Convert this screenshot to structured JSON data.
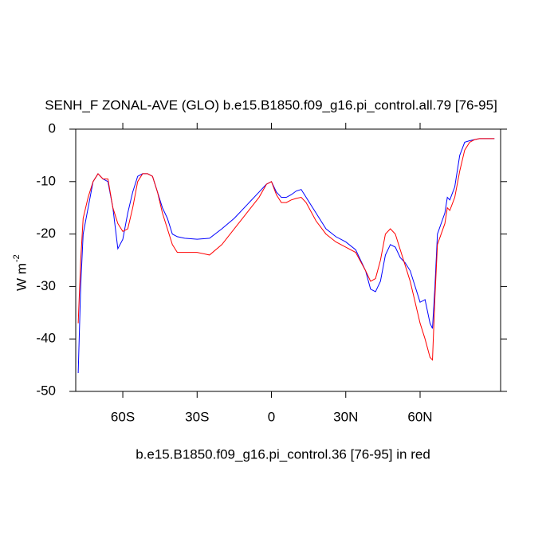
{
  "chart_data": {
    "type": "line",
    "title": "SENH_F ZONAL-AVE (GLO) b.e15.B1850.f09_g16.pi_control.all.79 [76-95]",
    "x_label": "b.e15.B1850.f09_g16.pi_control.36 [76-95] in red",
    "y_label": "W m",
    "y_label_superscript": "-2",
    "xlim": [
      -79,
      92.5
    ],
    "ylim": [
      -50,
      0
    ],
    "xticks": [
      {
        "value": -60,
        "label": "60S"
      },
      {
        "value": -30,
        "label": "30S"
      },
      0,
      {
        "value": 30,
        "label": "30N"
      },
      {
        "value": 60,
        "label": "60N"
      }
    ],
    "yticks": [
      0,
      -10,
      -20,
      -30,
      -40,
      -50
    ],
    "grid": false,
    "x": [
      -78,
      -77,
      -76,
      -74,
      -72,
      -70,
      -68,
      -66,
      -64,
      -62,
      -60,
      -58,
      -56,
      -54,
      -52,
      -50,
      -48,
      -46,
      -44,
      -42,
      -40,
      -38,
      -35,
      -30,
      -25,
      -20,
      -15,
      -10,
      -5,
      -2,
      0,
      2,
      4,
      6,
      8,
      10,
      12,
      14,
      18,
      22,
      26,
      30,
      34,
      38,
      40,
      42,
      44,
      46,
      48,
      50,
      52,
      54,
      56,
      58,
      60,
      62,
      64,
      65,
      66,
      67,
      70,
      71,
      72,
      74,
      76,
      78,
      80,
      82,
      84,
      86,
      90
    ],
    "series": [
      {
        "color": "#0000ff",
        "values": [
          -46.5,
          -30,
          -20,
          -15,
          -10,
          -8.5,
          -9.5,
          -10,
          -15,
          -22.8,
          -21,
          -16,
          -12,
          -9,
          -8.5,
          -8.5,
          -9,
          -12,
          -15,
          -17,
          -20,
          -20.5,
          -20.8,
          -21,
          -20.8,
          -19,
          -17,
          -14.5,
          -12,
          -10.5,
          -10,
          -12,
          -13,
          -13,
          -12.5,
          -11.8,
          -11.5,
          -13,
          -16,
          -19,
          -20.5,
          -21.5,
          -23,
          -27,
          -30.5,
          -31,
          -29,
          -24,
          -22,
          -22.5,
          -24.5,
          -25.5,
          -27,
          -30,
          -33,
          -32.5,
          -37,
          -38,
          -30,
          -20,
          -16,
          -13,
          -13.5,
          -11,
          -5,
          -2.5,
          -2.2,
          -2,
          -1.8,
          -1.8,
          -1.8
        ]
      },
      {
        "color": "#ff0000",
        "values": [
          -37,
          -25,
          -17,
          -13,
          -10,
          -8.5,
          -9.5,
          -9.5,
          -15,
          -18,
          -19.5,
          -19,
          -15,
          -10,
          -8.5,
          -8.5,
          -9,
          -12,
          -16,
          -19,
          -22,
          -23.5,
          -23.5,
          -23.5,
          -24,
          -22,
          -19,
          -16,
          -13,
          -10.5,
          -10,
          -12.5,
          -14,
          -14,
          -13.5,
          -13.2,
          -13,
          -14,
          -17.5,
          -20,
          -21.5,
          -22.5,
          -23.5,
          -27,
          -29,
          -28.5,
          -25,
          -20,
          -19,
          -20,
          -23,
          -26,
          -29,
          -33,
          -37,
          -40,
          -43.5,
          -44,
          -32,
          -22,
          -18,
          -15,
          -15.5,
          -13,
          -8,
          -4,
          -2.5,
          -2,
          -1.8,
          -1.8,
          -1.8
        ]
      }
    ]
  }
}
